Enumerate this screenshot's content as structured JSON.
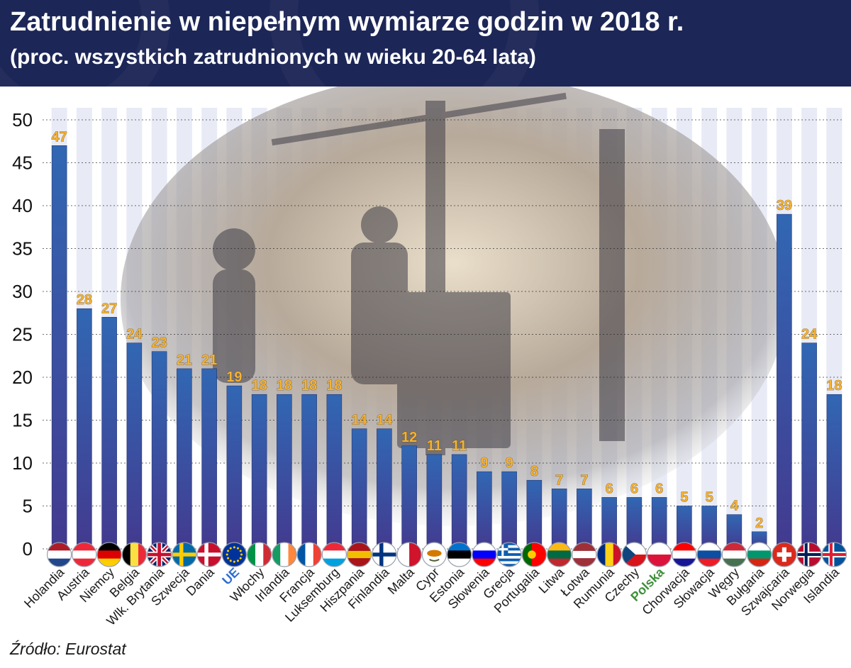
{
  "header": {
    "title": "Zatrudnienie w niepełnym wymiarze godzin w 2018 r.",
    "subtitle": "(proc. wszystkich zatrudnionych w wieku 20-64 lata)"
  },
  "source": "Źródło: Eurostat",
  "colors": {
    "header_bg": "#1c2657",
    "bar_top": "#3167b3",
    "bar_bottom": "#433a8f",
    "value_label": "#f5b335",
    "ue_label": "#2f6fd1",
    "polska_label": "#3f8f3a"
  },
  "chart_data": {
    "type": "bar",
    "categories": [
      "Holandia",
      "Austria",
      "Niemcy",
      "Belgia",
      "Wlk. Brytania",
      "Szwecja",
      "Dania",
      "UE",
      "Włochy",
      "Irlandia",
      "Francja",
      "Luksemburg",
      "Hiszpania",
      "Finlandia",
      "Malta",
      "Cypr",
      "Estonia",
      "Słowenia",
      "Grecja",
      "Portugalia",
      "Litwa",
      "Łotwa",
      "Rumunia",
      "Czechy",
      "Polska",
      "Chorwacja",
      "Słowacja",
      "Węgry",
      "Bułgaria",
      "Szwajcaria",
      "Norwegia",
      "Islandia"
    ],
    "values": [
      47,
      28,
      27,
      24,
      23,
      21,
      21,
      19,
      18,
      18,
      18,
      18,
      14,
      14,
      12,
      11,
      11,
      9,
      9,
      8,
      7,
      7,
      6,
      6,
      6,
      5,
      5,
      4,
      2,
      39,
      24,
      18
    ],
    "highlighted": {
      "UE": "#2f6fd1",
      "Polska": "#3f8f3a"
    },
    "flag_icons": [
      "netherlands-flag-icon",
      "austria-flag-icon",
      "germany-flag-icon",
      "belgium-flag-icon",
      "uk-flag-icon",
      "sweden-flag-icon",
      "denmark-flag-icon",
      "eu-flag-icon",
      "italy-flag-icon",
      "ireland-flag-icon",
      "france-flag-icon",
      "luxembourg-flag-icon",
      "spain-flag-icon",
      "finland-flag-icon",
      "malta-flag-icon",
      "cyprus-flag-icon",
      "estonia-flag-icon",
      "slovenia-flag-icon",
      "greece-flag-icon",
      "portugal-flag-icon",
      "lithuania-flag-icon",
      "latvia-flag-icon",
      "romania-flag-icon",
      "czechia-flag-icon",
      "poland-flag-icon",
      "croatia-flag-icon",
      "slovakia-flag-icon",
      "hungary-flag-icon",
      "bulgaria-flag-icon",
      "switzerland-flag-icon",
      "norway-flag-icon",
      "iceland-flag-icon"
    ],
    "ylim": [
      0,
      50
    ],
    "yticks": [
      0,
      5,
      10,
      15,
      20,
      25,
      30,
      35,
      40,
      45,
      50
    ],
    "grid": true,
    "xlabel": "",
    "ylabel": ""
  }
}
